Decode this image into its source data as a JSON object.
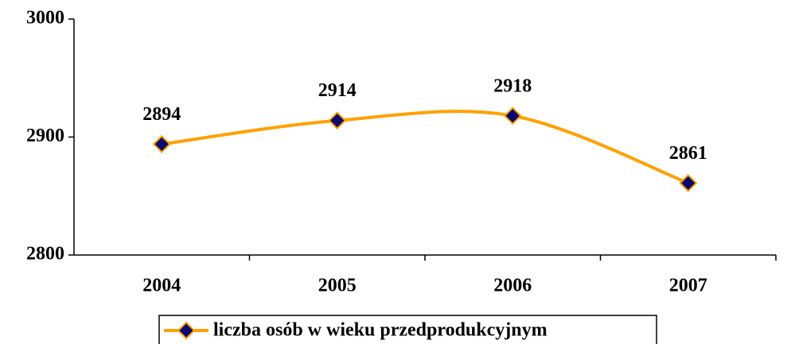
{
  "chart_data": {
    "type": "line",
    "categories": [
      "2004",
      "2005",
      "2006",
      "2007"
    ],
    "series": [
      {
        "name": "liczba osób w wieku przedprodukcyjnym",
        "color": "#ffa000",
        "marker_color": "#0a0a6e",
        "values": [
          2894,
          2914,
          2918,
          2861
        ]
      }
    ],
    "ylim": [
      2800,
      3000
    ],
    "yticks": [
      2800,
      2900,
      3000
    ],
    "smooth": true,
    "data_labels": true,
    "legend": "bottom"
  }
}
